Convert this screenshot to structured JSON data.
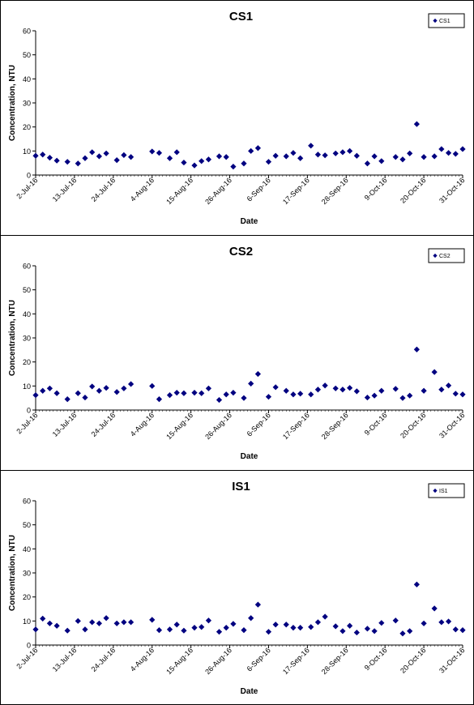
{
  "chart_data": [
    {
      "type": "scatter",
      "title": "CS1",
      "xlabel": "Date",
      "ylabel": "Concentration, NTU",
      "ylim": [
        0,
        60
      ],
      "yticks": [
        0,
        10,
        20,
        30,
        40,
        50,
        60
      ],
      "xlim": [
        "2016-07-02",
        "2016-10-31"
      ],
      "xticks": [
        "2-Jul-16",
        "13-Jul-16",
        "24-Jul-16",
        "4-Aug-16",
        "15-Aug-16",
        "26-Aug-16",
        "6-Sep-16",
        "17-Sep-16",
        "28-Sep-16",
        "9-Oct-16",
        "20-Oct-16",
        "31-Oct-16"
      ],
      "legend": "top-right",
      "grid": false,
      "marker_color": "#000080",
      "series": [
        {
          "name": "CS1",
          "points": [
            [
              "2016-07-02",
              8.0
            ],
            [
              "2016-07-04",
              8.5
            ],
            [
              "2016-07-06",
              7.2
            ],
            [
              "2016-07-08",
              6.0
            ],
            [
              "2016-07-11",
              5.5
            ],
            [
              "2016-07-14",
              4.8
            ],
            [
              "2016-07-16",
              7.0
            ],
            [
              "2016-07-18",
              9.5
            ],
            [
              "2016-07-20",
              7.8
            ],
            [
              "2016-07-22",
              9.0
            ],
            [
              "2016-07-25",
              6.2
            ],
            [
              "2016-07-27",
              8.3
            ],
            [
              "2016-07-29",
              7.5
            ],
            [
              "2016-08-04",
              9.8
            ],
            [
              "2016-08-06",
              9.2
            ],
            [
              "2016-08-09",
              7.0
            ],
            [
              "2016-08-11",
              9.5
            ],
            [
              "2016-08-13",
              5.2
            ],
            [
              "2016-08-16",
              4.0
            ],
            [
              "2016-08-18",
              5.8
            ],
            [
              "2016-08-20",
              6.5
            ],
            [
              "2016-08-23",
              7.8
            ],
            [
              "2016-08-25",
              7.5
            ],
            [
              "2016-08-27",
              3.5
            ],
            [
              "2016-08-30",
              4.8
            ],
            [
              "2016-09-01",
              10.0
            ],
            [
              "2016-09-03",
              11.2
            ],
            [
              "2016-09-06",
              5.5
            ],
            [
              "2016-09-08",
              8.0
            ],
            [
              "2016-09-11",
              7.8
            ],
            [
              "2016-09-13",
              9.2
            ],
            [
              "2016-09-15",
              7.0
            ],
            [
              "2016-09-18",
              12.2
            ],
            [
              "2016-09-20",
              8.5
            ],
            [
              "2016-09-22",
              8.2
            ],
            [
              "2016-09-25",
              9.0
            ],
            [
              "2016-09-27",
              9.5
            ],
            [
              "2016-09-29",
              10.0
            ],
            [
              "2016-10-01",
              8.0
            ],
            [
              "2016-10-04",
              4.8
            ],
            [
              "2016-10-06",
              7.8
            ],
            [
              "2016-10-08",
              5.8
            ],
            [
              "2016-10-12",
              7.5
            ],
            [
              "2016-10-14",
              6.5
            ],
            [
              "2016-10-16",
              9.0
            ],
            [
              "2016-10-18",
              21.2
            ],
            [
              "2016-10-20",
              7.5
            ],
            [
              "2016-10-23",
              7.8
            ],
            [
              "2016-10-25",
              10.8
            ],
            [
              "2016-10-27",
              9.2
            ],
            [
              "2016-10-29",
              8.8
            ],
            [
              "2016-10-31",
              10.8
            ]
          ]
        }
      ]
    },
    {
      "type": "scatter",
      "title": "CS2",
      "xlabel": "Date",
      "ylabel": "Concentration, NTU",
      "ylim": [
        0,
        60
      ],
      "yticks": [
        0,
        10,
        20,
        30,
        40,
        50,
        60
      ],
      "xlim": [
        "2016-07-02",
        "2016-10-31"
      ],
      "xticks": [
        "2-Jul-16",
        "13-Jul-16",
        "24-Jul-16",
        "4-Aug-16",
        "15-Aug-16",
        "26-Aug-16",
        "6-Sep-16",
        "17-Sep-16",
        "28-Sep-16",
        "9-Oct-16",
        "20-Oct-16",
        "31-Oct-16"
      ],
      "legend": "top-right",
      "grid": false,
      "marker_color": "#000080",
      "series": [
        {
          "name": "CS2",
          "points": [
            [
              "2016-07-02",
              6.2
            ],
            [
              "2016-07-04",
              8.0
            ],
            [
              "2016-07-06",
              9.0
            ],
            [
              "2016-07-08",
              7.0
            ],
            [
              "2016-07-11",
              4.5
            ],
            [
              "2016-07-14",
              7.0
            ],
            [
              "2016-07-16",
              5.2
            ],
            [
              "2016-07-18",
              9.8
            ],
            [
              "2016-07-20",
              8.0
            ],
            [
              "2016-07-22",
              9.2
            ],
            [
              "2016-07-25",
              7.5
            ],
            [
              "2016-07-27",
              9.0
            ],
            [
              "2016-07-29",
              10.8
            ],
            [
              "2016-08-04",
              10.0
            ],
            [
              "2016-08-06",
              4.5
            ],
            [
              "2016-08-09",
              6.2
            ],
            [
              "2016-08-11",
              7.2
            ],
            [
              "2016-08-13",
              7.0
            ],
            [
              "2016-08-16",
              7.2
            ],
            [
              "2016-08-18",
              7.0
            ],
            [
              "2016-08-20",
              9.0
            ],
            [
              "2016-08-23",
              4.2
            ],
            [
              "2016-08-25",
              6.5
            ],
            [
              "2016-08-27",
              7.2
            ],
            [
              "2016-08-30",
              5.0
            ],
            [
              "2016-09-01",
              11.0
            ],
            [
              "2016-09-03",
              15.0
            ],
            [
              "2016-09-06",
              5.5
            ],
            [
              "2016-09-08",
              9.5
            ],
            [
              "2016-09-11",
              8.0
            ],
            [
              "2016-09-13",
              6.5
            ],
            [
              "2016-09-15",
              6.8
            ],
            [
              "2016-09-18",
              6.5
            ],
            [
              "2016-09-20",
              8.5
            ],
            [
              "2016-09-22",
              10.2
            ],
            [
              "2016-09-25",
              9.0
            ],
            [
              "2016-09-27",
              8.5
            ],
            [
              "2016-09-29",
              9.2
            ],
            [
              "2016-10-01",
              7.8
            ],
            [
              "2016-10-04",
              5.2
            ],
            [
              "2016-10-06",
              6.0
            ],
            [
              "2016-10-08",
              8.0
            ],
            [
              "2016-10-12",
              8.8
            ],
            [
              "2016-10-14",
              5.0
            ],
            [
              "2016-10-16",
              6.0
            ],
            [
              "2016-10-18",
              25.2
            ],
            [
              "2016-10-20",
              8.0
            ],
            [
              "2016-10-23",
              15.8
            ],
            [
              "2016-10-25",
              8.5
            ],
            [
              "2016-10-27",
              10.2
            ],
            [
              "2016-10-29",
              6.8
            ],
            [
              "2016-10-31",
              6.5
            ]
          ]
        }
      ]
    },
    {
      "type": "scatter",
      "title": "IS1",
      "xlabel": "Date",
      "ylabel": "Concentration, NTU",
      "ylim": [
        0,
        60
      ],
      "yticks": [
        0,
        10,
        20,
        30,
        40,
        50,
        60
      ],
      "xlim": [
        "2016-07-02",
        "2016-10-31"
      ],
      "xticks": [
        "2-Jul-16",
        "13-Jul-16",
        "24-Jul-16",
        "4-Aug-16",
        "15-Aug-16",
        "26-Aug-16",
        "6-Sep-16",
        "17-Sep-16",
        "28-Sep-16",
        "9-Oct-16",
        "20-Oct-16",
        "31-Oct-16"
      ],
      "legend": "top-right",
      "grid": false,
      "marker_color": "#000080",
      "series": [
        {
          "name": "IS1",
          "points": [
            [
              "2016-07-02",
              6.5
            ],
            [
              "2016-07-04",
              11.0
            ],
            [
              "2016-07-06",
              9.0
            ],
            [
              "2016-07-08",
              8.0
            ],
            [
              "2016-07-11",
              6.0
            ],
            [
              "2016-07-14",
              10.0
            ],
            [
              "2016-07-16",
              6.5
            ],
            [
              "2016-07-18",
              9.5
            ],
            [
              "2016-07-20",
              9.0
            ],
            [
              "2016-07-22",
              11.2
            ],
            [
              "2016-07-25",
              9.0
            ],
            [
              "2016-07-27",
              9.5
            ],
            [
              "2016-07-29",
              9.5
            ],
            [
              "2016-08-04",
              10.5
            ],
            [
              "2016-08-06",
              6.2
            ],
            [
              "2016-08-09",
              6.5
            ],
            [
              "2016-08-11",
              8.5
            ],
            [
              "2016-08-13",
              6.0
            ],
            [
              "2016-08-16",
              7.2
            ],
            [
              "2016-08-18",
              7.5
            ],
            [
              "2016-08-20",
              10.2
            ],
            [
              "2016-08-23",
              5.5
            ],
            [
              "2016-08-25",
              7.2
            ],
            [
              "2016-08-27",
              8.8
            ],
            [
              "2016-08-30",
              6.2
            ],
            [
              "2016-09-01",
              11.2
            ],
            [
              "2016-09-03",
              16.8
            ],
            [
              "2016-09-06",
              5.5
            ],
            [
              "2016-09-08",
              8.5
            ],
            [
              "2016-09-11",
              8.5
            ],
            [
              "2016-09-13",
              7.2
            ],
            [
              "2016-09-15",
              7.2
            ],
            [
              "2016-09-18",
              7.5
            ],
            [
              "2016-09-20",
              9.5
            ],
            [
              "2016-09-22",
              11.8
            ],
            [
              "2016-09-25",
              7.8
            ],
            [
              "2016-09-27",
              5.8
            ],
            [
              "2016-09-29",
              8.0
            ],
            [
              "2016-10-01",
              5.2
            ],
            [
              "2016-10-04",
              6.8
            ],
            [
              "2016-10-06",
              5.8
            ],
            [
              "2016-10-08",
              9.2
            ],
            [
              "2016-10-12",
              10.2
            ],
            [
              "2016-10-14",
              4.8
            ],
            [
              "2016-10-16",
              5.8
            ],
            [
              "2016-10-18",
              25.2
            ],
            [
              "2016-10-20",
              9.0
            ],
            [
              "2016-10-23",
              15.2
            ],
            [
              "2016-10-25",
              9.5
            ],
            [
              "2016-10-27",
              9.8
            ],
            [
              "2016-10-29",
              6.5
            ],
            [
              "2016-10-31",
              6.2
            ]
          ]
        }
      ]
    }
  ]
}
